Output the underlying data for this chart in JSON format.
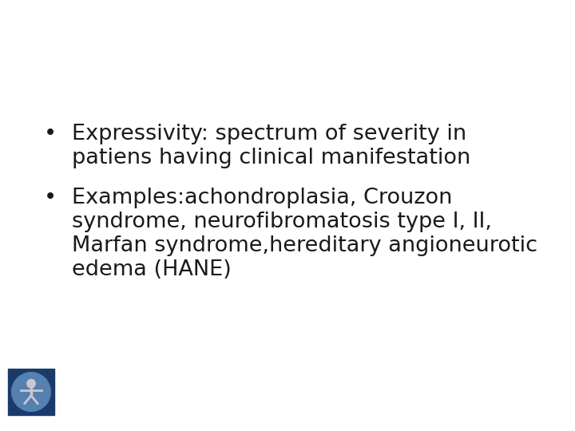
{
  "background_color": "#ffffff",
  "text_color": "#1a1a1a",
  "bullet1_line1": "Expressivity: spectrum of severity in",
  "bullet1_line2": "patiens having clinical manifestation",
  "bullet2_line1": "Examples:achondroplasia, Crouzon",
  "bullet2_line2": "syndrome, neurofibromatosis type I, II,",
  "bullet2_line3": "Marfan syndrome,hereditary angioneurotic",
  "bullet2_line4": "edema (HANE)",
  "bullet_char": "•",
  "font_size": 19.5,
  "font_family": "DejaVu Sans",
  "logo_bg_color": "#1a3a6b",
  "logo_circle_color": "#5580b0",
  "logo_figure_color": "#c8c8d0"
}
